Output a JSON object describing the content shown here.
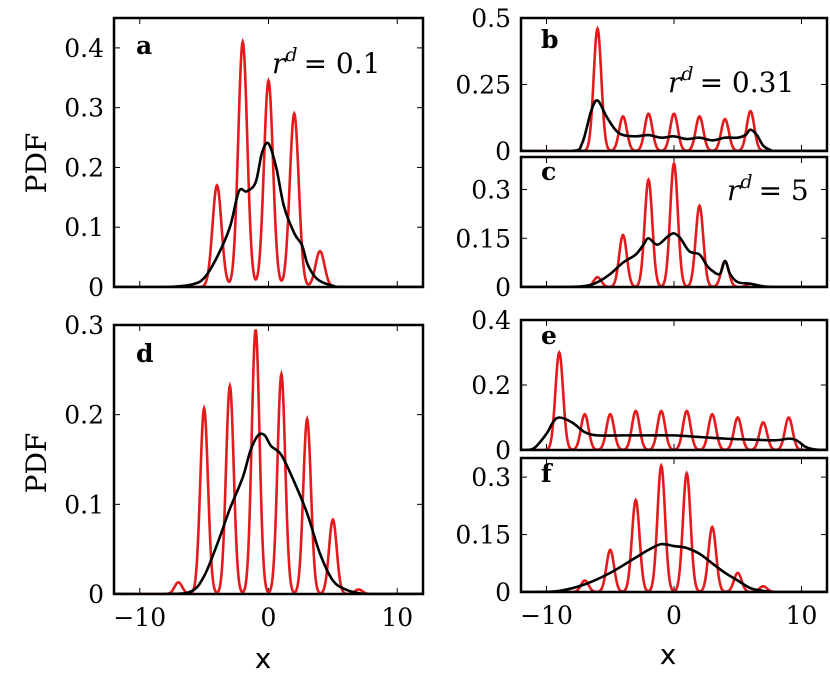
{
  "figure": {
    "ylabel_top": "PDF",
    "ylabel_bottom": "PDF",
    "xlabel_left": "x",
    "xlabel_right": "x"
  },
  "colors": {
    "red": "#e41a1c",
    "black": "#000000"
  },
  "chart_data": [
    {
      "id": "a",
      "type": "line",
      "label": "a",
      "annotation_var": "r",
      "annotation_sup": "d",
      "annotation_value": "= 0.1",
      "xlim": [
        -12,
        12
      ],
      "ylim": [
        0,
        0.45
      ],
      "yticks": [
        0,
        0.1,
        0.2,
        0.3,
        0.4
      ],
      "ytick_labels": [
        "0",
        "0.1",
        "0.2",
        "0.3",
        "0.4"
      ],
      "xticks": [
        -10,
        0,
        10
      ],
      "xtick_labels": [],
      "red_peaks": {
        "width": 0.35,
        "peaks": [
          [
            -4,
            0.17
          ],
          [
            -2,
            0.41
          ],
          [
            0,
            0.345
          ],
          [
            2,
            0.29
          ],
          [
            4,
            0.06
          ]
        ]
      },
      "black_curve": {
        "x": [
          -8,
          -6,
          -5,
          -4,
          -3,
          -2.3,
          -1.7,
          -1,
          -0.5,
          0,
          0.6,
          1.2,
          2,
          2.6,
          3,
          3.5,
          4,
          5,
          6
        ],
        "y": [
          0,
          0.004,
          0.015,
          0.05,
          0.1,
          0.16,
          0.16,
          0.175,
          0.225,
          0.24,
          0.2,
          0.135,
          0.09,
          0.07,
          0.04,
          0.02,
          0.01,
          0.002,
          0
        ]
      }
    },
    {
      "id": "b",
      "type": "line",
      "label": "b",
      "annotation_var": "r",
      "annotation_sup": "d",
      "annotation_value": "= 0.31",
      "xlim": [
        -12,
        12
      ],
      "ylim": [
        0,
        0.5
      ],
      "yticks": [
        0,
        0.25,
        0.5
      ],
      "ytick_labels": [
        "0",
        "0.25",
        "0.5"
      ],
      "xticks": [
        -10,
        0,
        10
      ],
      "xtick_labels": [],
      "red_peaks": {
        "width": 0.3,
        "peaks": [
          [
            -6,
            0.46
          ],
          [
            -4,
            0.13
          ],
          [
            -2,
            0.14
          ],
          [
            0,
            0.14
          ],
          [
            2,
            0.13
          ],
          [
            4,
            0.12
          ],
          [
            6,
            0.15
          ]
        ]
      },
      "black_curve": {
        "x": [
          -8,
          -7.2,
          -6.5,
          -6,
          -5.3,
          -4.6,
          -4,
          -3,
          -2,
          -1,
          0,
          1,
          2,
          3,
          4,
          5,
          5.6,
          6,
          6.5,
          7,
          7.6,
          8
        ],
        "y": [
          0,
          0.03,
          0.15,
          0.19,
          0.13,
          0.08,
          0.06,
          0.055,
          0.06,
          0.05,
          0.055,
          0.045,
          0.05,
          0.04,
          0.05,
          0.05,
          0.06,
          0.08,
          0.06,
          0.02,
          0.003,
          0
        ]
      }
    },
    {
      "id": "c",
      "type": "line",
      "label": "c",
      "annotation_var": "r",
      "annotation_sup": "d",
      "annotation_value": "= 5",
      "xlim": [
        -12,
        12
      ],
      "ylim": [
        0,
        0.4
      ],
      "yticks": [
        0,
        0.15,
        0.3
      ],
      "ytick_labels": [
        "0",
        "0.15",
        "0.3"
      ],
      "xticks": [
        -10,
        0,
        10
      ],
      "xtick_labels": [],
      "red_peaks": {
        "width": 0.3,
        "peaks": [
          [
            -6,
            0.03
          ],
          [
            -4,
            0.16
          ],
          [
            -2,
            0.33
          ],
          [
            0,
            0.38
          ],
          [
            2,
            0.25
          ],
          [
            4,
            0.08
          ],
          [
            6,
            0.01
          ]
        ]
      },
      "black_curve": {
        "x": [
          -9,
          -7,
          -6,
          -5,
          -4,
          -3,
          -2.4,
          -2,
          -1.3,
          -0.5,
          0,
          0.5,
          1.2,
          2,
          2.6,
          3,
          3.6,
          4,
          4.4,
          5,
          6,
          7,
          8
        ],
        "y": [
          0,
          0.003,
          0.015,
          0.04,
          0.075,
          0.1,
          0.13,
          0.15,
          0.13,
          0.155,
          0.165,
          0.15,
          0.11,
          0.1,
          0.065,
          0.05,
          0.04,
          0.08,
          0.04,
          0.015,
          0.01,
          0.002,
          0
        ]
      }
    },
    {
      "id": "d",
      "type": "line",
      "label": "d",
      "xlim": [
        -12,
        12
      ],
      "ylim": [
        0,
        0.3
      ],
      "yticks": [
        0,
        0.1,
        0.2,
        0.3
      ],
      "ytick_labels": [
        "0",
        "0.1",
        "0.2",
        "0.3"
      ],
      "xticks": [
        -10,
        0,
        10
      ],
      "xtick_labels": [
        "−10",
        "0",
        "10"
      ],
      "red_peaks": {
        "width": 0.3,
        "peaks": [
          [
            -7,
            0.013
          ],
          [
            -5,
            0.207
          ],
          [
            -3,
            0.232
          ],
          [
            -1,
            0.295
          ],
          [
            1,
            0.245
          ],
          [
            3,
            0.195
          ],
          [
            5,
            0.083
          ],
          [
            7,
            0.005
          ]
        ]
      },
      "black_curve": {
        "x": [
          -8,
          -6,
          -5,
          -4,
          -3,
          -2,
          -1.4,
          -0.8,
          -0.3,
          0.2,
          1,
          2,
          3,
          4,
          5,
          6,
          7,
          8
        ],
        "y": [
          0,
          0.003,
          0.02,
          0.055,
          0.095,
          0.13,
          0.16,
          0.177,
          0.177,
          0.165,
          0.155,
          0.125,
          0.09,
          0.045,
          0.015,
          0.005,
          0.001,
          0
        ]
      }
    },
    {
      "id": "e",
      "type": "line",
      "label": "e",
      "xlim": [
        -12,
        12
      ],
      "ylim": [
        0,
        0.4
      ],
      "yticks": [
        0,
        0.2,
        0.4
      ],
      "ytick_labels": [
        "0",
        "0.2",
        "0.4"
      ],
      "xticks": [
        -10,
        0,
        10
      ],
      "xtick_labels": [],
      "red_peaks": {
        "width": 0.3,
        "peaks": [
          [
            -9,
            0.3
          ],
          [
            -7,
            0.11
          ],
          [
            -5,
            0.11
          ],
          [
            -3,
            0.12
          ],
          [
            -1,
            0.12
          ],
          [
            1,
            0.12
          ],
          [
            3,
            0.11
          ],
          [
            5,
            0.1
          ],
          [
            7,
            0.085
          ],
          [
            9,
            0.1
          ]
        ]
      },
      "black_curve": {
        "x": [
          -12,
          -11,
          -10,
          -9.5,
          -9,
          -8,
          -7,
          -6,
          -4,
          -2,
          0,
          2,
          4,
          6,
          8,
          9,
          9.6,
          10.3,
          11,
          12
        ],
        "y": [
          0,
          0.005,
          0.05,
          0.085,
          0.1,
          0.085,
          0.055,
          0.045,
          0.045,
          0.045,
          0.045,
          0.04,
          0.035,
          0.032,
          0.03,
          0.035,
          0.03,
          0.01,
          0.002,
          0
        ]
      }
    },
    {
      "id": "f",
      "type": "line",
      "label": "f",
      "xlim": [
        -12,
        12
      ],
      "ylim": [
        0,
        0.35
      ],
      "yticks": [
        0,
        0.15,
        0.3
      ],
      "ytick_labels": [
        "0",
        "0.15",
        "0.3"
      ],
      "xticks": [
        -10,
        0,
        10
      ],
      "xtick_labels": [
        "−10",
        "0",
        "10"
      ],
      "red_peaks": {
        "width": 0.3,
        "peaks": [
          [
            -7,
            0.03
          ],
          [
            -5,
            0.11
          ],
          [
            -3,
            0.24
          ],
          [
            -1,
            0.33
          ],
          [
            1,
            0.31
          ],
          [
            3,
            0.17
          ],
          [
            5,
            0.05
          ],
          [
            7,
            0.015
          ]
        ]
      },
      "black_curve": {
        "x": [
          -11,
          -9,
          -7,
          -5,
          -3,
          -2,
          -1,
          0,
          1,
          2,
          3,
          4,
          5,
          6,
          7,
          8
        ],
        "y": [
          0,
          0.003,
          0.02,
          0.05,
          0.09,
          0.11,
          0.125,
          0.12,
          0.115,
          0.1,
          0.075,
          0.05,
          0.03,
          0.01,
          0.003,
          0
        ]
      }
    }
  ]
}
